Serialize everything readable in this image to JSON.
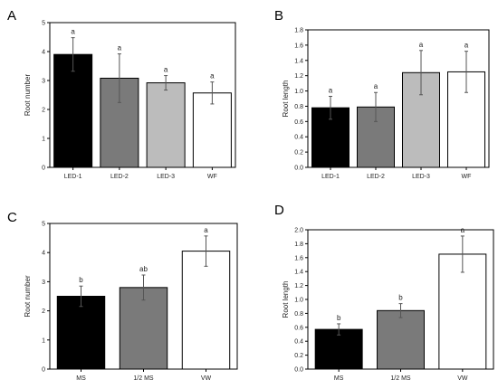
{
  "chart_data": [
    {
      "panel": "A",
      "type": "bar",
      "ylabel": "Root number",
      "categories": [
        "LED-1",
        "LED-2",
        "LED-3",
        "WF"
      ],
      "values": [
        3.9,
        3.08,
        2.92,
        2.57
      ],
      "errors": [
        0.58,
        0.84,
        0.25,
        0.38
      ],
      "sig": [
        "a",
        "a",
        "a",
        "a"
      ],
      "fills": [
        "#000000",
        "#7a7a7a",
        "#bcbcbc",
        "#ffffff"
      ],
      "ylim": [
        0,
        5
      ],
      "yticks": [
        0,
        1,
        2,
        3,
        4,
        5
      ],
      "yticklabels": [
        "0",
        "1",
        "2",
        "3",
        "4",
        "5"
      ]
    },
    {
      "panel": "B",
      "type": "bar",
      "ylabel": "Root length",
      "categories": [
        "LED-1",
        "LED-2",
        "LED-3",
        "WF"
      ],
      "values": [
        0.78,
        0.79,
        1.24,
        1.25
      ],
      "errors": [
        0.15,
        0.19,
        0.29,
        0.27
      ],
      "sig": [
        "a",
        "a",
        "a",
        "a"
      ],
      "fills": [
        "#000000",
        "#7a7a7a",
        "#bcbcbc",
        "#ffffff"
      ],
      "ylim": [
        0,
        1.8
      ],
      "yticks": [
        0,
        0.2,
        0.4,
        0.6,
        0.8,
        1.0,
        1.2,
        1.4,
        1.6,
        1.8
      ],
      "yticklabels": [
        "0.0",
        "0.2",
        "0.4",
        "0.6",
        "0.8",
        "1.0",
        "1.2",
        "1.4",
        "1.6",
        "1.8"
      ]
    },
    {
      "panel": "C",
      "type": "bar",
      "ylabel": "Root number",
      "categories": [
        "MS",
        "1/2 MS",
        "VW"
      ],
      "values": [
        2.5,
        2.8,
        4.05
      ],
      "errors": [
        0.35,
        0.43,
        0.52
      ],
      "sig": [
        "b",
        "ab",
        "a"
      ],
      "fills": [
        "#000000",
        "#7a7a7a",
        "#ffffff"
      ],
      "ylim": [
        0,
        5
      ],
      "yticks": [
        0,
        1,
        2,
        3,
        4,
        5
      ],
      "yticklabels": [
        "0",
        "1",
        "2",
        "3",
        "4",
        "5"
      ]
    },
    {
      "panel": "D",
      "type": "bar",
      "ylabel": "Root length",
      "categories": [
        "MS",
        "1/2 MS",
        "VW"
      ],
      "values": [
        0.57,
        0.84,
        1.65
      ],
      "errors": [
        0.08,
        0.1,
        0.26
      ],
      "sig": [
        "b",
        "b",
        "a"
      ],
      "fills": [
        "#000000",
        "#7a7a7a",
        "#ffffff"
      ],
      "ylim": [
        0,
        2.0
      ],
      "yticks": [
        0,
        0.2,
        0.4,
        0.6,
        0.8,
        1.0,
        1.2,
        1.4,
        1.6,
        1.8,
        2.0
      ],
      "yticklabels": [
        "0.0",
        "0.2",
        "0.4",
        "0.6",
        "0.8",
        "1.0",
        "1.2",
        "1.4",
        "1.6",
        "1.8",
        "2.0"
      ]
    }
  ]
}
